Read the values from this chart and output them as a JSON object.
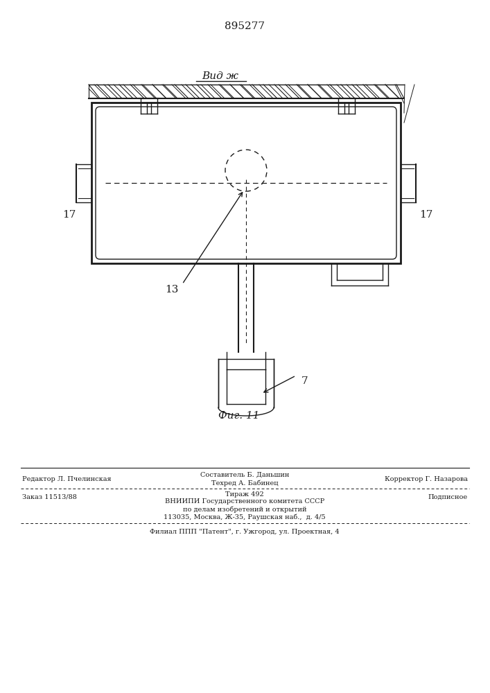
{
  "patent_number": "895277",
  "view_label": "Вид ж",
  "fig_label": "Фиг. 11",
  "label_17_left": "17",
  "label_17_right": "17",
  "label_13": "13",
  "label_7": "7",
  "footer_ed": "Редактор Л. Пчелинская",
  "footer_comp": "Составитель Б. Даньшин",
  "footer_tech": "Техред А. Бабинец",
  "footer_corr": "Корректор Г. Назарова",
  "footer_order": "Заказ 11513/88",
  "footer_tirazh": "Тираж 492",
  "footer_podp": "Подписное",
  "footer_vniip1": "ВНИИПИ Государственного комитета СССР",
  "footer_vniip2": "по делам изобретений и открытий",
  "footer_vniip3": "113035, Москва, Ж-35, Раушская наб.,  д. 4/5",
  "footer_filial": "Филиал ППП \"Патент\", г. Ужгород, ул. Проектная, 4",
  "bg_color": "#ffffff",
  "line_color": "#1a1a1a"
}
